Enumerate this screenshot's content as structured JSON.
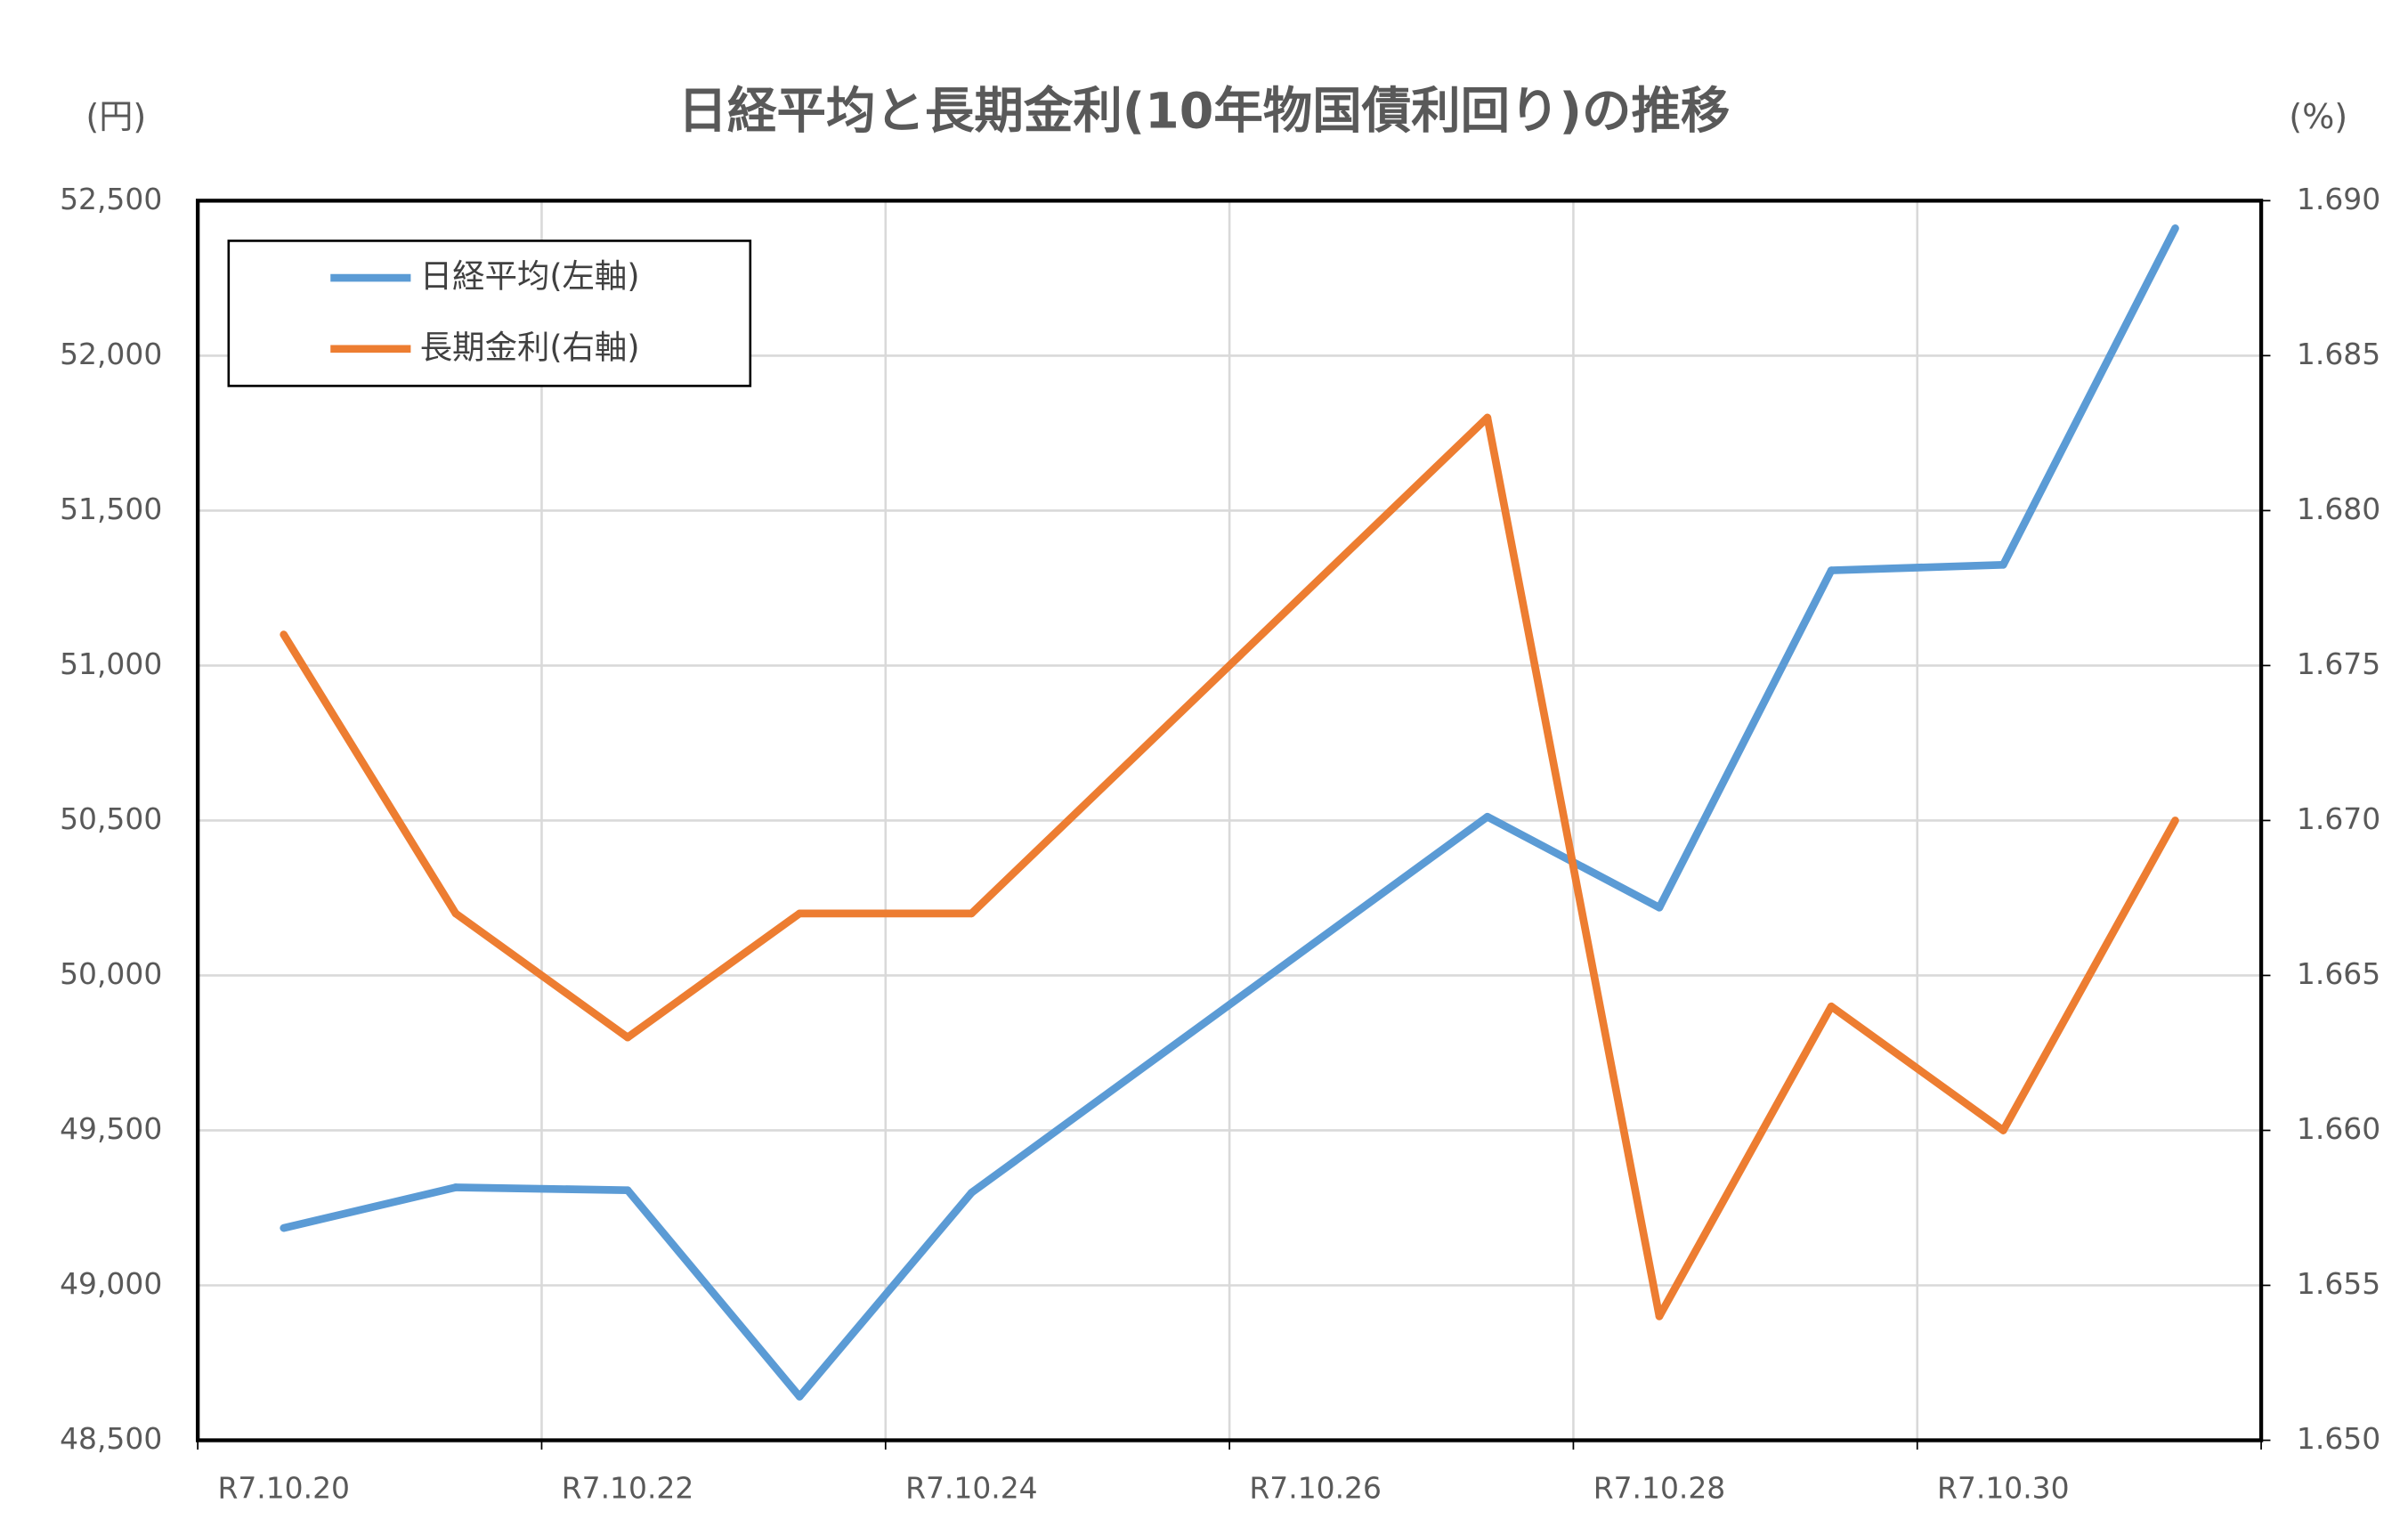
{
  "chart_data": {
    "type": "line",
    "title": "日経平均と長期金利(10年物国債利回り)の推移",
    "y_label": "(円)",
    "y2_label": "(%)",
    "categories": [
      "R7.10.20",
      null,
      "R7.10.22",
      null,
      "R7.10.24",
      null,
      "R7.10.26",
      null,
      "R7.10.28",
      null,
      "R7.10.30",
      null
    ],
    "series": [
      {
        "name": "日経平均(左軸)",
        "color": "#5b9bd5",
        "values": [
          49185,
          49316,
          49307,
          48641,
          49299,
          null,
          null,
          50512,
          50219,
          51307,
          51325,
          52411
        ]
      },
      {
        "name": "長期金利(右軸)",
        "color": "#ed7d31",
        "axis": "y2",
        "values": [
          1.676,
          1.667,
          1.663,
          1.667,
          1.667,
          null,
          null,
          1.683,
          1.654,
          1.664,
          1.66,
          1.67
        ]
      }
    ],
    "connect_gaps": true,
    "ylim": [
      48500,
      52500
    ],
    "yticks": [
      {
        "value": 48500,
        "label": "48,500"
      },
      {
        "value": 49000,
        "label": "49,000"
      },
      {
        "value": 49500,
        "label": "49,500"
      },
      {
        "value": 50000,
        "label": "50,000"
      },
      {
        "value": 50500,
        "label": "50,500"
      },
      {
        "value": 51000,
        "label": "51,000"
      },
      {
        "value": 51500,
        "label": "51,500"
      },
      {
        "value": 52000,
        "label": "52,000"
      },
      {
        "value": 52500,
        "label": "52,500"
      }
    ],
    "y2lim": [
      1.65,
      1.69
    ],
    "y2ticks": [
      {
        "value": 1.65,
        "label": "1.650"
      },
      {
        "value": 1.655,
        "label": "1.655"
      },
      {
        "value": 1.66,
        "label": "1.660"
      },
      {
        "value": 1.665,
        "label": "1.665"
      },
      {
        "value": 1.67,
        "label": "1.670"
      },
      {
        "value": 1.675,
        "label": "1.675"
      },
      {
        "value": 1.68,
        "label": "1.680"
      },
      {
        "value": 1.685,
        "label": "1.685"
      },
      {
        "value": 1.69,
        "label": "1.690"
      }
    ],
    "grid": true,
    "legend": "upper left"
  }
}
